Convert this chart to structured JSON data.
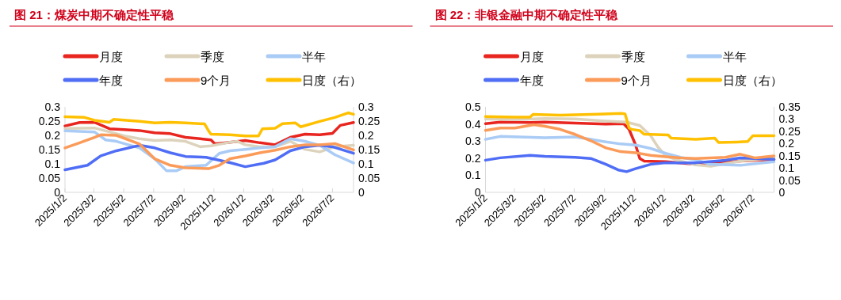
{
  "chart_data": [
    {
      "type": "line",
      "title": "图 21：煤炭中期不确定性平稳",
      "legend": "top",
      "xlim": [
        "2025-01-02",
        "2026-08-14"
      ],
      "xticks": [
        {
          "value": "2025-01-02",
          "label": "2025/1/2"
        },
        {
          "value": "2025-03-02",
          "label": "2025/3/2"
        },
        {
          "value": "2025-05-02",
          "label": "2025/5/2"
        },
        {
          "value": "2025-07-02",
          "label": "2025/7/2"
        },
        {
          "value": "2025-09-02",
          "label": "2025/9/2"
        },
        {
          "value": "2025-11-02",
          "label": "2025/11/2"
        },
        {
          "value": "2026-01-02",
          "label": "2026/1/2"
        },
        {
          "value": "2026-03-02",
          "label": "2026/3/2"
        },
        {
          "value": "2026-05-02",
          "label": "2026/5/2"
        },
        {
          "value": "2026-07-02",
          "label": "2026/7/2"
        }
      ],
      "ylim": [
        0,
        0.3
      ],
      "yticks": [
        0,
        0.05,
        0.1,
        0.15,
        0.2,
        0.25,
        0.3
      ],
      "y2lim": [
        0,
        0.3
      ],
      "y2ticks": [
        0,
        0.05,
        0.1,
        0.15,
        0.2,
        0.25,
        0.3
      ],
      "series": [
        {
          "name": "月度",
          "color": "#e8251f",
          "x": [
            "2025-01-02",
            "2025-02-01",
            "2025-03-03",
            "2025-04-03",
            "2025-05-03",
            "2025-06-03",
            "2025-07-04",
            "2025-08-05",
            "2025-09-05",
            "2025-10-05",
            "2025-10-27",
            "2025-11-04",
            "2025-12-05",
            "2026-01-05",
            "2026-02-04",
            "2026-03-07",
            "2026-04-07",
            "2026-05-07",
            "2026-06-06",
            "2026-07-02",
            "2026-07-18",
            "2026-08-14"
          ],
          "values": [
            0.233,
            0.245,
            0.246,
            0.223,
            0.22,
            0.217,
            0.209,
            0.206,
            0.193,
            0.188,
            0.184,
            0.17,
            0.176,
            0.182,
            0.174,
            0.167,
            0.193,
            0.204,
            0.202,
            0.207,
            0.235,
            0.245
          ]
        },
        {
          "name": "季度",
          "color": "#ddd3bc",
          "x": [
            "2025-01-02",
            "2025-03-03",
            "2025-04-03",
            "2025-05-03",
            "2025-06-03",
            "2025-07-04",
            "2025-08-05",
            "2025-09-05",
            "2025-10-05",
            "2025-10-27",
            "2025-12-05",
            "2025-12-20",
            "2026-01-05",
            "2026-02-04",
            "2026-03-07",
            "2026-04-07",
            "2026-05-07",
            "2026-06-06",
            "2026-07-07",
            "2026-08-14"
          ],
          "values": [
            0.224,
            0.226,
            0.212,
            0.198,
            0.188,
            0.182,
            0.184,
            0.179,
            0.16,
            0.163,
            0.176,
            0.179,
            0.167,
            0.16,
            0.16,
            0.179,
            0.151,
            0.142,
            0.16,
            0.165
          ]
        },
        {
          "name": "半年",
          "color": "#a9cbf5",
          "x": [
            "2025-01-02",
            "2025-03-03",
            "2025-03-26",
            "2025-04-17",
            "2025-06-03",
            "2025-07-04",
            "2025-07-28",
            "2025-08-18",
            "2025-09-05",
            "2025-10-17",
            "2025-11-13",
            "2025-12-05",
            "2026-01-05",
            "2026-02-04",
            "2026-03-07",
            "2026-04-07",
            "2026-05-07",
            "2026-06-06",
            "2026-07-07",
            "2026-08-14"
          ],
          "values": [
            0.216,
            0.212,
            0.184,
            0.179,
            0.156,
            0.118,
            0.076,
            0.076,
            0.09,
            0.095,
            0.137,
            0.146,
            0.151,
            0.156,
            0.16,
            0.188,
            0.179,
            0.165,
            0.132,
            0.103
          ]
        },
        {
          "name": "年度",
          "color": "#4f6df5",
          "x": [
            "2025-01-02",
            "2025-02-17",
            "2025-03-16",
            "2025-04-17",
            "2025-06-03",
            "2025-07-04",
            "2025-08-05",
            "2025-09-05",
            "2025-10-17",
            "2025-12-05",
            "2026-01-05",
            "2026-02-12",
            "2026-03-07",
            "2026-04-07",
            "2026-05-07",
            "2026-06-06",
            "2026-07-02",
            "2026-08-14"
          ],
          "values": [
            0.079,
            0.095,
            0.128,
            0.146,
            0.165,
            0.156,
            0.139,
            0.126,
            0.123,
            0.104,
            0.09,
            0.102,
            0.114,
            0.146,
            0.16,
            0.165,
            0.16,
            0.137
          ]
        },
        {
          "name": "9个月",
          "color": "#fb9b5a",
          "x": [
            "2025-01-02",
            "2025-02-01",
            "2025-03-03",
            "2025-03-16",
            "2025-04-17",
            "2025-06-03",
            "2025-07-04",
            "2025-08-05",
            "2025-09-05",
            "2025-10-22",
            "2025-11-13",
            "2025-12-05",
            "2026-01-05",
            "2026-02-04",
            "2026-03-07",
            "2026-04-07",
            "2026-05-07",
            "2026-06-06",
            "2026-07-07",
            "2026-08-14"
          ],
          "values": [
            0.156,
            0.174,
            0.193,
            0.202,
            0.2,
            0.17,
            0.118,
            0.095,
            0.086,
            0.083,
            0.095,
            0.118,
            0.128,
            0.139,
            0.148,
            0.16,
            0.167,
            0.167,
            0.171,
            0.149
          ]
        },
        {
          "name": "日度（右）",
          "color": "#ffc000",
          "axis": "y2",
          "x": [
            "2025-01-02",
            "2025-02-11",
            "2025-03-03",
            "2025-04-03",
            "2025-04-11",
            "2025-06-03",
            "2025-07-04",
            "2025-08-05",
            "2025-09-05",
            "2025-10-14",
            "2025-10-22",
            "2025-10-27",
            "2025-12-05",
            "2026-01-05",
            "2026-02-01",
            "2026-02-09",
            "2026-03-07",
            "2026-03-22",
            "2026-04-17",
            "2026-04-28",
            "2026-06-06",
            "2026-07-07",
            "2026-08-03",
            "2026-08-14"
          ],
          "values": [
            0.265,
            0.263,
            0.253,
            0.246,
            0.256,
            0.249,
            0.244,
            0.246,
            0.244,
            0.24,
            0.216,
            0.204,
            0.202,
            0.198,
            0.198,
            0.223,
            0.225,
            0.241,
            0.244,
            0.23,
            0.249,
            0.263,
            0.279,
            0.274
          ]
        }
      ]
    },
    {
      "type": "line",
      "title": "图 22：非银金融中期不确定性平稳",
      "legend": "top",
      "xlim": [
        "2025-01-02",
        "2026-08-14"
      ],
      "xticks": [
        {
          "value": "2025-01-02",
          "label": "2025/1/2"
        },
        {
          "value": "2025-03-02",
          "label": "2025/3/2"
        },
        {
          "value": "2025-05-02",
          "label": "2025/5/2"
        },
        {
          "value": "2025-07-02",
          "label": "2025/7/2"
        },
        {
          "value": "2025-09-02",
          "label": "2025/9/2"
        },
        {
          "value": "2025-11-02",
          "label": "2025/11/2"
        },
        {
          "value": "2026-01-02",
          "label": "2026/1/2"
        },
        {
          "value": "2026-03-02",
          "label": "2026/3/2"
        },
        {
          "value": "2026-05-02",
          "label": "2026/5/2"
        },
        {
          "value": "2026-07-02",
          "label": "2026/7/2"
        }
      ],
      "ylim": [
        0,
        0.5
      ],
      "yticks": [
        0,
        0.1,
        0.2,
        0.3,
        0.4,
        0.5
      ],
      "y2lim": [
        0,
        0.35
      ],
      "y2ticks": [
        0,
        0.05,
        0.1,
        0.15,
        0.2,
        0.25,
        0.3,
        0.35
      ],
      "series": [
        {
          "name": "月度",
          "color": "#e8251f",
          "x": [
            "2025-01-02",
            "2025-02-01",
            "2025-04-03",
            "2025-05-03",
            "2025-07-04",
            "2025-09-05",
            "2025-10-11",
            "2025-10-22",
            "2025-11-04",
            "2025-11-13",
            "2025-11-22",
            "2026-01-05",
            "2026-03-07",
            "2026-05-07",
            "2026-06-06",
            "2026-08-14"
          ],
          "values": [
            0.402,
            0.411,
            0.409,
            0.411,
            0.405,
            0.399,
            0.402,
            0.369,
            0.28,
            0.198,
            0.183,
            0.179,
            0.164,
            0.176,
            0.183,
            0.193
          ]
        },
        {
          "name": "季度",
          "color": "#ddd3bc",
          "x": [
            "2025-01-02",
            "2025-03-03",
            "2025-05-03",
            "2025-07-04",
            "2025-09-05",
            "2025-10-17",
            "2025-11-13",
            "2025-12-05",
            "2025-12-20",
            "2026-01-05",
            "2026-02-04",
            "2026-03-07",
            "2026-04-07",
            "2026-05-07",
            "2026-06-06",
            "2026-08-14"
          ],
          "values": [
            0.429,
            0.426,
            0.432,
            0.429,
            0.417,
            0.411,
            0.391,
            0.332,
            0.265,
            0.213,
            0.183,
            0.161,
            0.153,
            0.168,
            0.183,
            0.201
          ]
        },
        {
          "name": "半年",
          "color": "#a9cbf5",
          "x": [
            "2025-01-02",
            "2025-02-01",
            "2025-05-03",
            "2025-07-04",
            "2025-08-05",
            "2025-09-05",
            "2025-10-05",
            "2025-11-04",
            "2025-12-05",
            "2026-01-05",
            "2026-02-04",
            "2026-03-07",
            "2026-04-07",
            "2026-06-06",
            "2026-08-14"
          ],
          "values": [
            0.31,
            0.327,
            0.32,
            0.324,
            0.31,
            0.295,
            0.283,
            0.277,
            0.257,
            0.228,
            0.205,
            0.19,
            0.164,
            0.158,
            0.179
          ]
        },
        {
          "name": "年度",
          "color": "#4f6df5",
          "x": [
            "2025-01-02",
            "2025-02-01",
            "2025-04-03",
            "2025-05-03",
            "2025-07-04",
            "2025-08-05",
            "2025-09-05",
            "2025-09-30",
            "2025-10-17",
            "2025-11-04",
            "2025-12-05",
            "2026-01-05",
            "2026-03-07",
            "2026-05-07",
            "2026-06-06",
            "2026-08-14"
          ],
          "values": [
            0.188,
            0.202,
            0.216,
            0.211,
            0.205,
            0.198,
            0.164,
            0.131,
            0.121,
            0.138,
            0.164,
            0.173,
            0.173,
            0.188,
            0.201,
            0.193
          ]
        },
        {
          "name": "9个月",
          "color": "#fb9b5a",
          "x": [
            "2025-01-02",
            "2025-02-01",
            "2025-03-03",
            "2025-04-11",
            "2025-05-03",
            "2025-06-03",
            "2025-07-04",
            "2025-08-05",
            "2025-09-05",
            "2025-10-05",
            "2025-11-04",
            "2025-12-05",
            "2026-01-05",
            "2026-02-04",
            "2026-03-07",
            "2026-05-07",
            "2026-06-06",
            "2026-07-07",
            "2026-08-14"
          ],
          "values": [
            0.362,
            0.376,
            0.376,
            0.396,
            0.387,
            0.369,
            0.339,
            0.302,
            0.26,
            0.238,
            0.232,
            0.216,
            0.208,
            0.201,
            0.198,
            0.205,
            0.223,
            0.201,
            0.213
          ]
        },
        {
          "name": "日度（右）",
          "color": "#ffc000",
          "axis": "y2",
          "x": [
            "2025-01-02",
            "2025-03-03",
            "2025-04-03",
            "2025-04-09",
            "2025-06-03",
            "2025-08-05",
            "2025-10-06",
            "2025-10-14",
            "2025-10-22",
            "2025-10-27",
            "2025-11-13",
            "2025-11-22",
            "2026-01-10",
            "2026-01-16",
            "2026-03-07",
            "2026-04-15",
            "2026-04-23",
            "2026-05-30",
            "2026-06-21",
            "2026-07-02",
            "2026-08-14"
          ],
          "values": [
            0.31,
            0.308,
            0.308,
            0.319,
            0.316,
            0.319,
            0.323,
            0.321,
            0.264,
            0.258,
            0.253,
            0.238,
            0.235,
            0.222,
            0.217,
            0.222,
            0.204,
            0.206,
            0.208,
            0.232,
            0.232
          ]
        }
      ]
    }
  ]
}
